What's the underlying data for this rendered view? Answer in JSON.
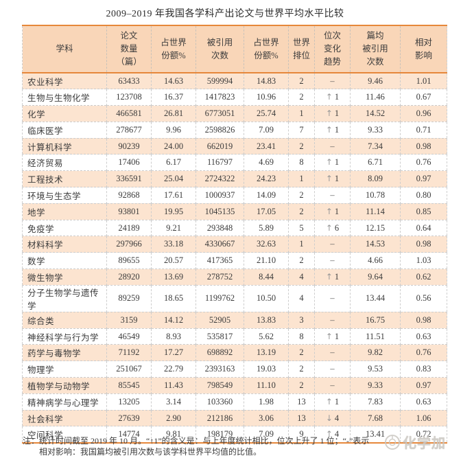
{
  "title": "2009–2019 年我国各学科产出论文与世界平均水平比较",
  "table": {
    "columns": [
      {
        "key": "subject",
        "label": "学科"
      },
      {
        "key": "papers",
        "label": "论文\n数量\n（篇）"
      },
      {
        "key": "share_world_papers",
        "label": "占世界\n份额%"
      },
      {
        "key": "citations",
        "label": "被引用\n次数"
      },
      {
        "key": "share_world_citations",
        "label": "占世界\n份额%"
      },
      {
        "key": "world_rank",
        "label": "世界\n排位"
      },
      {
        "key": "trend",
        "label": "位次\n变化\n趋势"
      },
      {
        "key": "citations_per_paper",
        "label": "篇均\n被引用\n次数"
      },
      {
        "key": "relative_impact",
        "label": "相对\n影响"
      }
    ],
    "rows": [
      {
        "subject": "农业科学",
        "papers": "63433",
        "share_world_papers": "14.63",
        "citations": "599994",
        "share_world_citations": "14.83",
        "world_rank": "2",
        "trend": "–",
        "citations_per_paper": "9.46",
        "relative_impact": "1.01"
      },
      {
        "subject": "生物与生物化学",
        "papers": "123708",
        "share_world_papers": "16.37",
        "citations": "1417823",
        "share_world_citations": "10.96",
        "world_rank": "2",
        "trend": "↑1",
        "citations_per_paper": "11.46",
        "relative_impact": "0.67"
      },
      {
        "subject": "化学",
        "papers": "466581",
        "share_world_papers": "26.81",
        "citations": "6773051",
        "share_world_citations": "25.74",
        "world_rank": "1",
        "trend": "↑1",
        "citations_per_paper": "14.52",
        "relative_impact": "0.96"
      },
      {
        "subject": "临床医学",
        "papers": "278677",
        "share_world_papers": "9.96",
        "citations": "2598826",
        "share_world_citations": "7.09",
        "world_rank": "7",
        "trend": "↑1",
        "citations_per_paper": "9.33",
        "relative_impact": "0.71"
      },
      {
        "subject": "计算机科学",
        "papers": "90239",
        "share_world_papers": "24.00",
        "citations": "662019",
        "share_world_citations": "23.41",
        "world_rank": "2",
        "trend": "–",
        "citations_per_paper": "7.34",
        "relative_impact": "0.98"
      },
      {
        "subject": "经济贸易",
        "papers": "17406",
        "share_world_papers": "6.17",
        "citations": "116797",
        "share_world_citations": "4.69",
        "world_rank": "8",
        "trend": "↑1",
        "citations_per_paper": "6.71",
        "relative_impact": "0.76"
      },
      {
        "subject": "工程技术",
        "papers": "336591",
        "share_world_papers": "25.04",
        "citations": "2724322",
        "share_world_citations": "24.23",
        "world_rank": "1",
        "trend": "↑1",
        "citations_per_paper": "8.09",
        "relative_impact": "0.97"
      },
      {
        "subject": "环境与生态学",
        "papers": "92868",
        "share_world_papers": "17.61",
        "citations": "1000937",
        "share_world_citations": "14.09",
        "world_rank": "2",
        "trend": "–",
        "citations_per_paper": "10.78",
        "relative_impact": "0.80"
      },
      {
        "subject": "地学",
        "papers": "93801",
        "share_world_papers": "19.95",
        "citations": "1045135",
        "share_world_citations": "17.05",
        "world_rank": "2",
        "trend": "↑1",
        "citations_per_paper": "11.14",
        "relative_impact": "0.85"
      },
      {
        "subject": "免疫学",
        "papers": "24189",
        "share_world_papers": "9.21",
        "citations": "293848",
        "share_world_citations": "5.89",
        "world_rank": "5",
        "trend": "↑6",
        "citations_per_paper": "12.15",
        "relative_impact": "0.64"
      },
      {
        "subject": "材料科学",
        "papers": "297966",
        "share_world_papers": "33.18",
        "citations": "4330667",
        "share_world_citations": "32.63",
        "world_rank": "1",
        "trend": "–",
        "citations_per_paper": "14.53",
        "relative_impact": "0.98"
      },
      {
        "subject": "数学",
        "papers": "89655",
        "share_world_papers": "20.57",
        "citations": "417365",
        "share_world_citations": "21.10",
        "world_rank": "2",
        "trend": "–",
        "citations_per_paper": "4.66",
        "relative_impact": "1.03"
      },
      {
        "subject": "微生物学",
        "papers": "28920",
        "share_world_papers": "13.69",
        "citations": "278752",
        "share_world_citations": "8.44",
        "world_rank": "4",
        "trend": "↑1",
        "citations_per_paper": "9.64",
        "relative_impact": "0.62"
      },
      {
        "subject": "分子生物学与遗传学",
        "papers": "89259",
        "share_world_papers": "18.65",
        "citations": "1199762",
        "share_world_citations": "10.50",
        "world_rank": "4",
        "trend": "–",
        "citations_per_paper": "13.44",
        "relative_impact": "0.56"
      },
      {
        "subject": "综合类",
        "papers": "3159",
        "share_world_papers": "14.12",
        "citations": "52905",
        "share_world_citations": "13.83",
        "world_rank": "3",
        "trend": "–",
        "citations_per_paper": "16.75",
        "relative_impact": "0.98"
      },
      {
        "subject": "神经科学与行为学",
        "papers": "46549",
        "share_world_papers": "8.93",
        "citations": "535817",
        "share_world_citations": "5.62",
        "world_rank": "8",
        "trend": "↑1",
        "citations_per_paper": "11.51",
        "relative_impact": "0.63"
      },
      {
        "subject": "药学与毒物学",
        "papers": "71192",
        "share_world_papers": "17.27",
        "citations": "698892",
        "share_world_citations": "13.19",
        "world_rank": "2",
        "trend": "–",
        "citations_per_paper": "9.82",
        "relative_impact": "0.76"
      },
      {
        "subject": "物理学",
        "papers": "251067",
        "share_world_papers": "22.79",
        "citations": "2393163",
        "share_world_citations": "19.03",
        "world_rank": "2",
        "trend": "–",
        "citations_per_paper": "9.53",
        "relative_impact": "0.83"
      },
      {
        "subject": "植物学与动物学",
        "papers": "85545",
        "share_world_papers": "11.43",
        "citations": "798549",
        "share_world_citations": "11.10",
        "world_rank": "2",
        "trend": "–",
        "citations_per_paper": "9.33",
        "relative_impact": "0.97"
      },
      {
        "subject": "精神病学与心理学",
        "papers": "13205",
        "share_world_papers": "3.14",
        "citations": "103360",
        "share_world_citations": "1.98",
        "world_rank": "13",
        "trend": "↑1",
        "citations_per_paper": "7.83",
        "relative_impact": "0.63"
      },
      {
        "subject": "社会科学",
        "papers": "27639",
        "share_world_papers": "2.90",
        "citations": "212186",
        "share_world_citations": "3.06",
        "world_rank": "13",
        "trend": "↓4",
        "citations_per_paper": "7.68",
        "relative_impact": "1.06"
      },
      {
        "subject": "空间科学",
        "papers": "14774",
        "share_world_papers": "9.81",
        "citations": "198179",
        "share_world_citations": "7.09",
        "world_rank": "9",
        "trend": "↑4",
        "citations_per_paper": "13.41",
        "relative_impact": "0.72"
      }
    ]
  },
  "notes": {
    "line1": "注：统计时间截至 2019 年 10 月。“↑1”的含义是：与上年度统计相比，位次上升了 1 位；“-”表示",
    "line2": "相对影响：我国篇均被引用次数与该学科世界平均值的比值。"
  },
  "watermark": {
    "text": "化学加"
  },
  "colors": {
    "header_bg": "#f9d6b8",
    "alt_row_bg": "#fce4d0",
    "accent_border": "#e6873a",
    "text": "#3b3b3b",
    "arrow": "#979797",
    "watermark": "#cbc7c1"
  }
}
